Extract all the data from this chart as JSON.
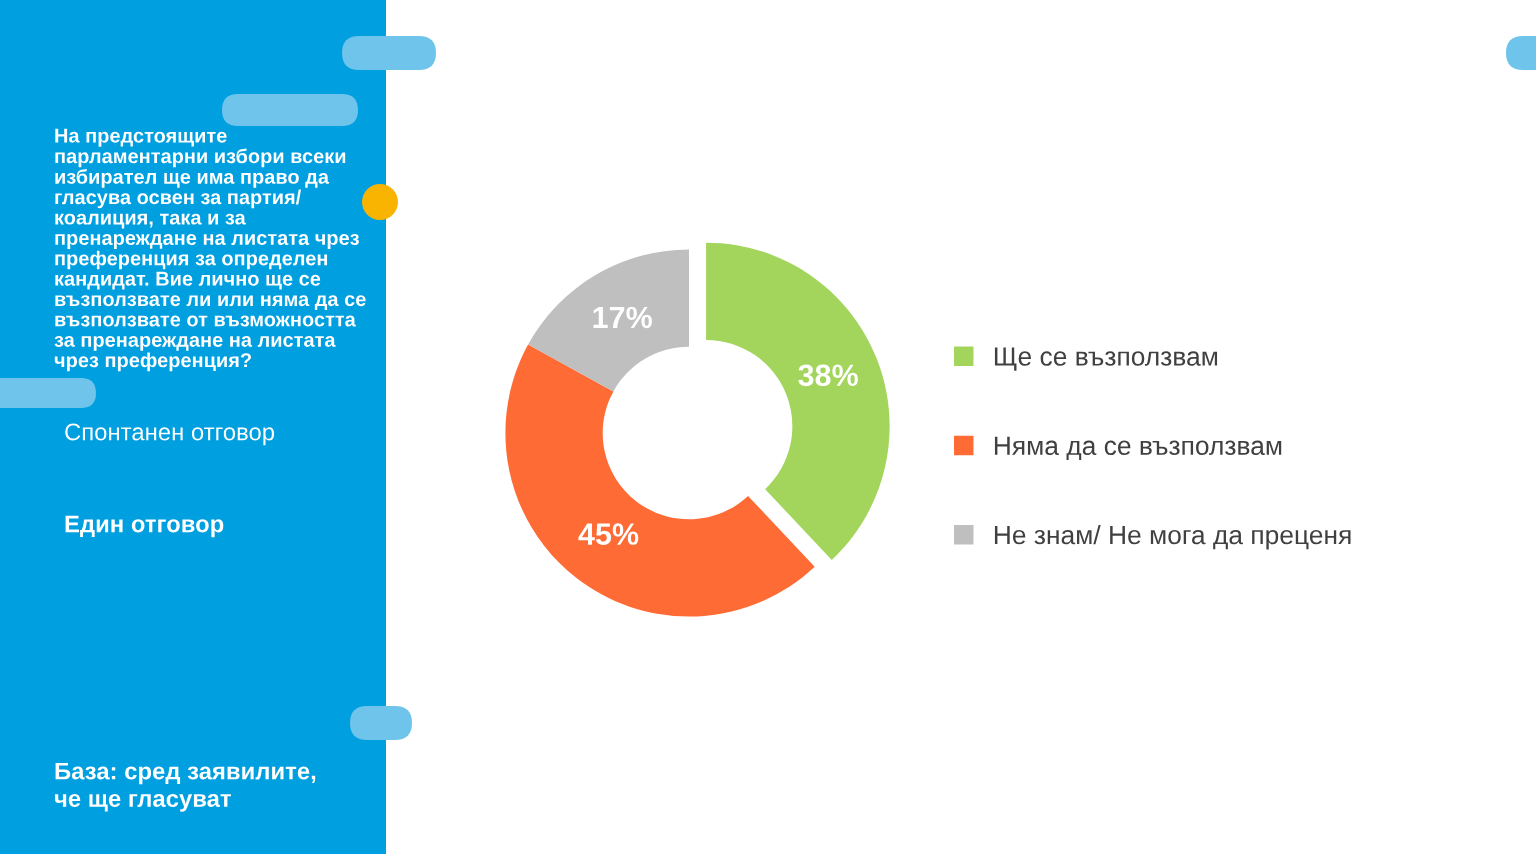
{
  "chart_data": {
    "type": "donut",
    "title": "На предстоящите парламентарни избори всеки избирател ще има право да гласува освен за партия/ коалиция, така и за пренареждане на листата чрез преференция за определен кандидат. Вие лично ще се възползвате ли или няма да се възползвате от възможността за пренареждане на листата чрез преференция?",
    "annotations": [
      "Спонтанен отговор",
      "Един отговор",
      "База: сред заявилите, че ще гласуват"
    ],
    "categories": [
      "Ще се възползвам",
      "Няма да се възползвам",
      "Не знам/ Не мога да преценя"
    ],
    "values": [
      38,
      45,
      17
    ],
    "colors": [
      "#a3d55d",
      "#ff6b35",
      "#bfbfbf"
    ],
    "value_labels": [
      "38%",
      "45%",
      "17%"
    ],
    "legend": "right"
  }
}
